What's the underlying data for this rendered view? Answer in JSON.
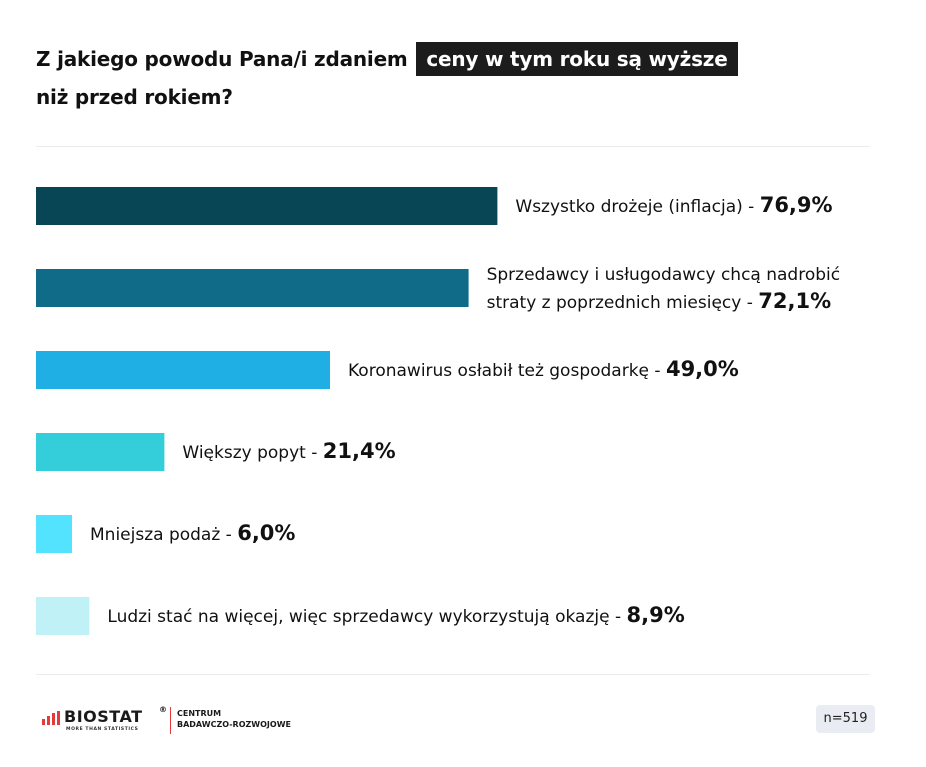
{
  "title": {
    "part1": "Z jakiego powodu Pana/i zdaniem",
    "highlight": "ceny w tym roku są wyższe",
    "part2": "niż przed rokiem?"
  },
  "chart_data": {
    "type": "bar",
    "orientation": "horizontal",
    "categories": [
      "Wszystko drożeje (inflacja)",
      "Sprzedawcy i usługodawcy chcą nadrobić straty z poprzednich miesięcy",
      "Koronawirus osłabił też gospodarkę",
      "Większy popyt",
      "Mniejsza podaż",
      "Ludzi stać na więcej, więc sprzedawcy wykorzystują okazję"
    ],
    "label_lines": [
      [
        "Wszystko drożeje (inflacja) - "
      ],
      [
        "Sprzedawcy i usługodawcy chcą nadrobić",
        "straty z poprzednich miesięcy - "
      ],
      [
        "Koronawirus osłabił też gospodarkę - "
      ],
      [
        "Większy popyt - "
      ],
      [
        "Mniejsza podaż - "
      ],
      [
        "Ludzi stać na więcej, więc sprzedawcy wykorzystują okazję - "
      ]
    ],
    "values": [
      76.9,
      72.1,
      49.0,
      21.4,
      6.0,
      8.9
    ],
    "value_labels": [
      "76,9%",
      "72,1%",
      "49,0%",
      "21,4%",
      "6,0%",
      "8,9%"
    ],
    "colors": [
      "#084656",
      "#106b89",
      "#20afe4",
      "#33ceda",
      "#54e3fe",
      "#c0f1f6"
    ],
    "xlim": [
      0,
      100
    ]
  },
  "footer": {
    "logo_text": "BIOSTAT",
    "logo_registered": "®",
    "logo_tagline": "MORE THAN STATISTICS",
    "logo_sub1": "CENTRUM",
    "logo_sub2": "BADAWCZO-ROZWOJOWE",
    "n_label": "n=519",
    "logo_bar_colors": [
      "#e23b3b",
      "#e23b3b",
      "#e23b3b",
      "#e23b3b"
    ],
    "icon": "bar-chart-logo-icon"
  }
}
